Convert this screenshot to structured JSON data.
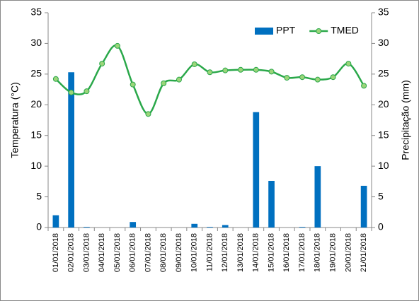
{
  "chart_data": {
    "type": "combo",
    "y_label": "Temperatura (°C)",
    "y2_label": "Precipitação (mm)",
    "categories": [
      "01/01/2018",
      "02/01/2018",
      "03/01/2018",
      "04/01/2018",
      "05/01/2018",
      "06/01/2018",
      "07/01/2018",
      "08/01/2018",
      "09/01/2018",
      "10/01/2018",
      "11/01/2018",
      "12/01/2018",
      "13/01/2018",
      "14/01/2018",
      "15/01/2018",
      "16/01/2018",
      "17/01/2018",
      "18/01/2018",
      "19/01/2018",
      "20/01/2018",
      "21/01/2018"
    ],
    "series": [
      {
        "name": "PPT",
        "type": "bar",
        "axis": "y2",
        "color": "#0070c0",
        "values": [
          2.0,
          25.3,
          0.1,
          0,
          0,
          0.9,
          0,
          0,
          0,
          0.6,
          0.1,
          0.4,
          0,
          18.8,
          7.6,
          0,
          0.1,
          10.0,
          0,
          0,
          6.8
        ]
      },
      {
        "name": "TMED",
        "type": "line",
        "axis": "y",
        "color": "#2aa84a",
        "marker_color": "#9bd57a",
        "smooth": true,
        "values": [
          24.2,
          22.0,
          22.2,
          26.7,
          29.6,
          23.3,
          18.5,
          23.5,
          24.1,
          26.6,
          25.3,
          25.6,
          25.7,
          25.7,
          25.4,
          24.4,
          24.5,
          24.1,
          24.5,
          26.7,
          23.1
        ]
      }
    ],
    "ylim": [
      0,
      35
    ],
    "yticks": [
      0,
      5,
      10,
      15,
      20,
      25,
      30,
      35
    ],
    "y2lim": [
      0,
      35
    ],
    "y2ticks": [
      0,
      5,
      10,
      15,
      20,
      25,
      30,
      35
    ],
    "grid": false,
    "legend": "top-right"
  }
}
